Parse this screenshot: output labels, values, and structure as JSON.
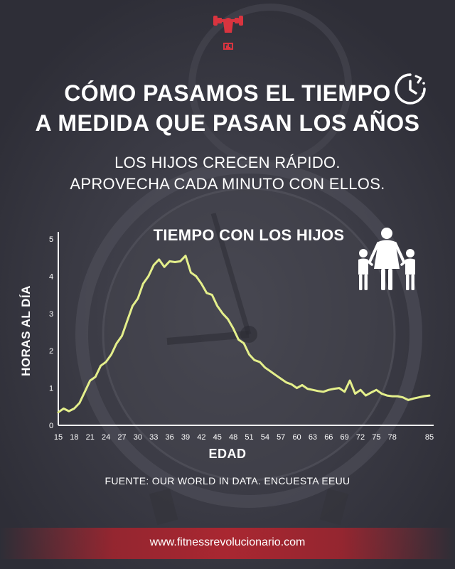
{
  "header": {
    "title_lines": [
      "CÓMO PASAMOS EL TIEMPO",
      "A MEDIDA QUE PASAN LOS AÑOS"
    ],
    "subtitle_lines": [
      "LOS HIJOS CRECEN RÁPIDO.",
      "APROVECHA CADA MINUTO CON ELLOS."
    ],
    "clock_icon": "clock-history-icon",
    "logo_icon": "fitness-fist-logo"
  },
  "chart_data": {
    "type": "line",
    "title": "TIEMPO CON LOS HIJOS",
    "xlabel": "EDAD",
    "ylabel": "HORAS AL DÍA",
    "x": [
      15,
      16,
      17,
      18,
      19,
      20,
      21,
      22,
      23,
      24,
      25,
      26,
      27,
      28,
      29,
      30,
      31,
      32,
      33,
      34,
      35,
      36,
      37,
      38,
      39,
      40,
      41,
      42,
      43,
      44,
      45,
      46,
      47,
      48,
      49,
      50,
      51,
      52,
      53,
      54,
      55,
      56,
      57,
      58,
      59,
      60,
      61,
      62,
      63,
      64,
      65,
      66,
      67,
      68,
      69,
      70,
      71,
      72,
      73,
      74,
      75,
      76,
      77,
      78,
      79,
      80,
      81,
      82,
      83,
      84,
      85
    ],
    "series": [
      {
        "values": [
          0.35,
          0.45,
          0.38,
          0.45,
          0.6,
          0.9,
          1.2,
          1.3,
          1.6,
          1.7,
          1.9,
          2.2,
          2.4,
          2.8,
          3.2,
          3.4,
          3.8,
          4.0,
          4.3,
          4.45,
          4.25,
          4.4,
          4.38,
          4.4,
          4.55,
          4.1,
          4.0,
          3.8,
          3.55,
          3.5,
          3.2,
          3.0,
          2.85,
          2.6,
          2.3,
          2.2,
          1.9,
          1.75,
          1.7,
          1.55,
          1.45,
          1.35,
          1.25,
          1.15,
          1.1,
          1.0,
          1.08,
          0.98,
          0.95,
          0.92,
          0.9,
          0.95,
          0.98,
          1.0,
          0.9,
          1.2,
          0.85,
          0.95,
          0.8,
          0.88,
          0.95,
          0.85,
          0.8,
          0.78,
          0.78,
          0.75,
          0.68,
          0.72,
          0.75,
          0.78,
          0.8
        ]
      }
    ],
    "xticks": [
      15,
      18,
      21,
      24,
      27,
      30,
      33,
      36,
      39,
      42,
      45,
      48,
      51,
      54,
      57,
      60,
      63,
      66,
      69,
      72,
      75,
      78,
      85
    ],
    "yticks": [
      0,
      1,
      2,
      3,
      4,
      5
    ],
    "xlim": [
      15,
      85
    ],
    "ylim": [
      0,
      5
    ],
    "line_color": "#e4ef8b",
    "grid": false
  },
  "family_icon": "family-parent-children-icon",
  "source_text": "FUENTE: OUR WORLD IN DATA. ENCUESTA EEUU",
  "footer": {
    "url": "www.fitnessrevolucionario.com"
  }
}
